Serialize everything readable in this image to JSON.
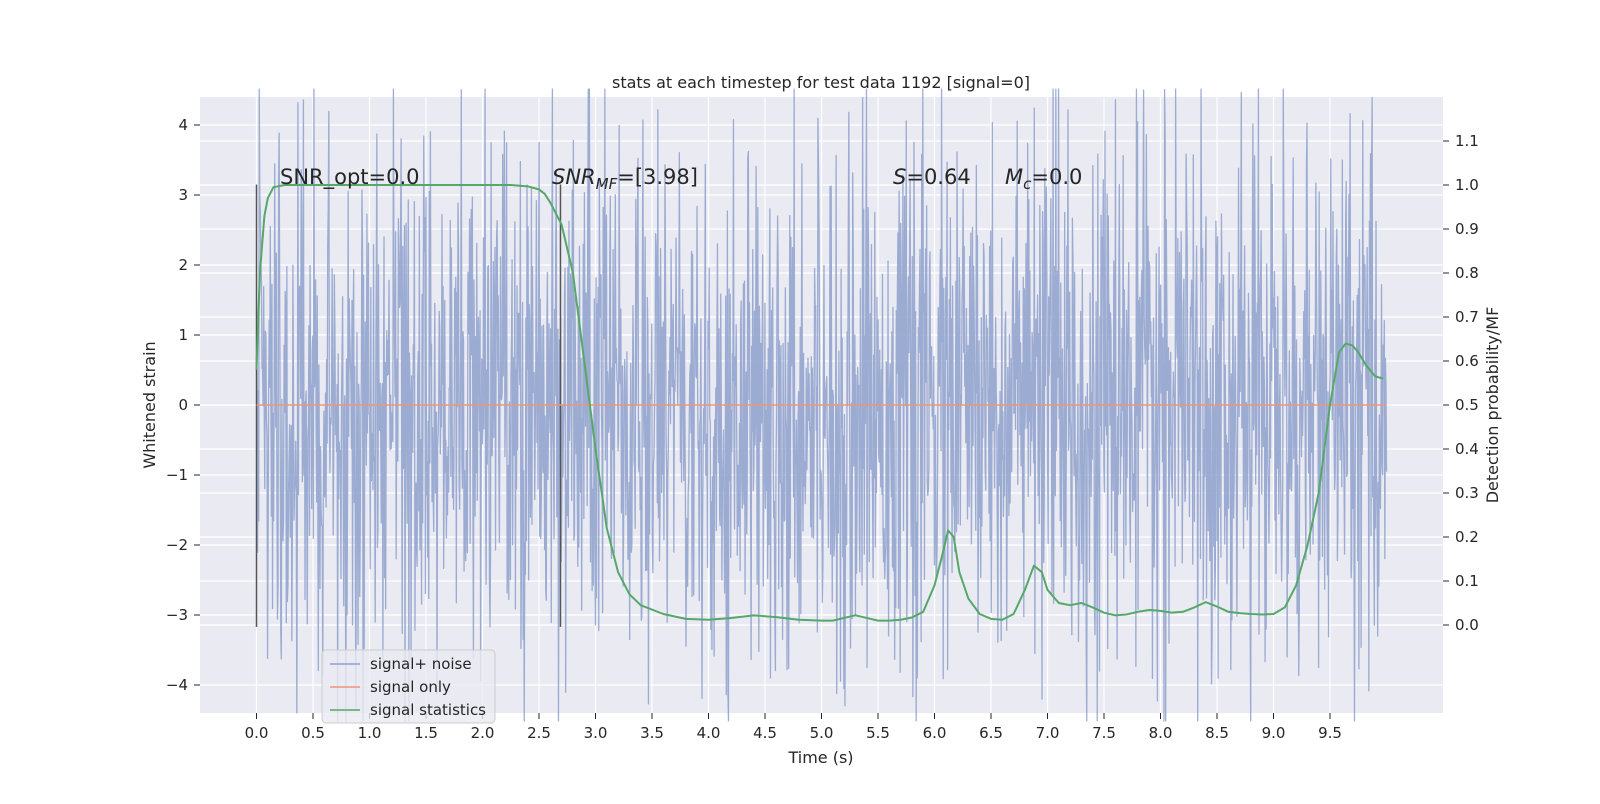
{
  "chart_data": {
    "type": "line",
    "title": "stats at each timestep for test data 1192 [signal=0]",
    "xlabel": "Time (s)",
    "ylabel": "Whitened strain",
    "ylabel_right": "Detection probability/MF",
    "xlim": [
      -0.5,
      10.5
    ],
    "ylim": [
      -4.4,
      4.4
    ],
    "ylim_right": [
      -0.2,
      1.2
    ],
    "x_ticks": [
      "0.0",
      "0.5",
      "1.0",
      "1.5",
      "2.0",
      "2.5",
      "3.0",
      "3.5",
      "4.0",
      "4.5",
      "5.0",
      "5.5",
      "6.0",
      "6.5",
      "7.0",
      "7.5",
      "8.0",
      "8.5",
      "9.0",
      "9.5"
    ],
    "y_ticks": [
      "4",
      "3",
      "2",
      "1",
      "0",
      "−1",
      "−2",
      "−3",
      "−4"
    ],
    "y_ticks_right": [
      "1.1",
      "1.0",
      "0.9",
      "0.8",
      "0.7",
      "0.6",
      "0.5",
      "0.4",
      "0.3",
      "0.2",
      "0.1",
      "0.0"
    ],
    "grid": true,
    "legend_position": "lower-left",
    "annotations": {
      "snr_opt": "SNR_opt=0.0",
      "snr_mf_prefix": "SNR",
      "snr_mf_sub": "MF",
      "snr_mf_suffix": "=[3.98]",
      "s_var": "S",
      "s_value": "=0.64",
      "mc_var": "M",
      "mc_sub": "c",
      "mc_value": "=0.0"
    },
    "vertical_markers": [
      0.0,
      2.69
    ],
    "series": [
      {
        "name": "signal+ noise",
        "color": "#8da0cb",
        "x_range": [
          0.0,
          10.0
        ],
        "samples": 2048,
        "typical_amplitude": 1.9,
        "extreme_values": [
          [
            0.12,
            2.55
          ],
          [
            0.1,
            -3.62
          ],
          [
            1.53,
            3.05
          ],
          [
            2.18,
            3.58
          ],
          [
            2.5,
            3.75
          ],
          [
            1.05,
            -3.1
          ],
          [
            3.3,
            -3.35
          ],
          [
            4.55,
            -3.9
          ],
          [
            5.2,
            -4.05
          ],
          [
            5.88,
            -3.38
          ],
          [
            6.72,
            2.98
          ],
          [
            7.15,
            2.75
          ],
          [
            7.42,
            -3.28
          ],
          [
            8.82,
            4.01
          ],
          [
            8.98,
            3.55
          ],
          [
            8.62,
            -3.78
          ],
          [
            9.12,
            -3.6
          ],
          [
            9.92,
            -3.3
          ]
        ]
      },
      {
        "name": "signal only",
        "color": "#e9967a",
        "x": [
          0.0,
          10.0
        ],
        "y": [
          0.0,
          0.0
        ]
      },
      {
        "name": "signal statistics",
        "color": "#55a868",
        "axis": "right",
        "x": [
          0.0,
          0.03,
          0.07,
          0.1,
          0.15,
          0.25,
          0.5,
          1.0,
          1.5,
          2.0,
          2.25,
          2.4,
          2.5,
          2.55,
          2.6,
          2.7,
          2.8,
          2.9,
          3.0,
          3.1,
          3.2,
          3.3,
          3.4,
          3.6,
          3.8,
          4.0,
          4.2,
          4.4,
          4.6,
          4.8,
          5.0,
          5.1,
          5.2,
          5.3,
          5.4,
          5.5,
          5.6,
          5.7,
          5.8,
          5.9,
          6.0,
          6.07,
          6.12,
          6.17,
          6.22,
          6.3,
          6.4,
          6.5,
          6.6,
          6.7,
          6.8,
          6.88,
          6.95,
          7.0,
          7.1,
          7.2,
          7.3,
          7.4,
          7.5,
          7.6,
          7.7,
          7.8,
          7.9,
          8.0,
          8.1,
          8.2,
          8.3,
          8.4,
          8.5,
          8.6,
          8.7,
          8.8,
          8.9,
          9.0,
          9.1,
          9.2,
          9.3,
          9.4,
          9.5,
          9.58,
          9.64,
          9.7,
          9.75,
          9.82,
          9.9,
          9.97
        ],
        "y": [
          0.58,
          0.8,
          0.93,
          0.97,
          0.995,
          1.0,
          1.0,
          1.0,
          1.0,
          1.0,
          1.0,
          0.997,
          0.99,
          0.98,
          0.96,
          0.91,
          0.8,
          0.6,
          0.4,
          0.22,
          0.12,
          0.07,
          0.045,
          0.025,
          0.014,
          0.012,
          0.016,
          0.022,
          0.018,
          0.012,
          0.01,
          0.01,
          0.016,
          0.022,
          0.016,
          0.01,
          0.01,
          0.012,
          0.017,
          0.03,
          0.09,
          0.16,
          0.215,
          0.2,
          0.12,
          0.06,
          0.025,
          0.014,
          0.012,
          0.025,
          0.08,
          0.135,
          0.12,
          0.08,
          0.05,
          0.045,
          0.05,
          0.04,
          0.028,
          0.022,
          0.024,
          0.03,
          0.034,
          0.032,
          0.028,
          0.03,
          0.04,
          0.052,
          0.042,
          0.03,
          0.027,
          0.025,
          0.024,
          0.025,
          0.04,
          0.09,
          0.18,
          0.3,
          0.5,
          0.62,
          0.64,
          0.635,
          0.62,
          0.59,
          0.565,
          0.56
        ]
      }
    ]
  }
}
